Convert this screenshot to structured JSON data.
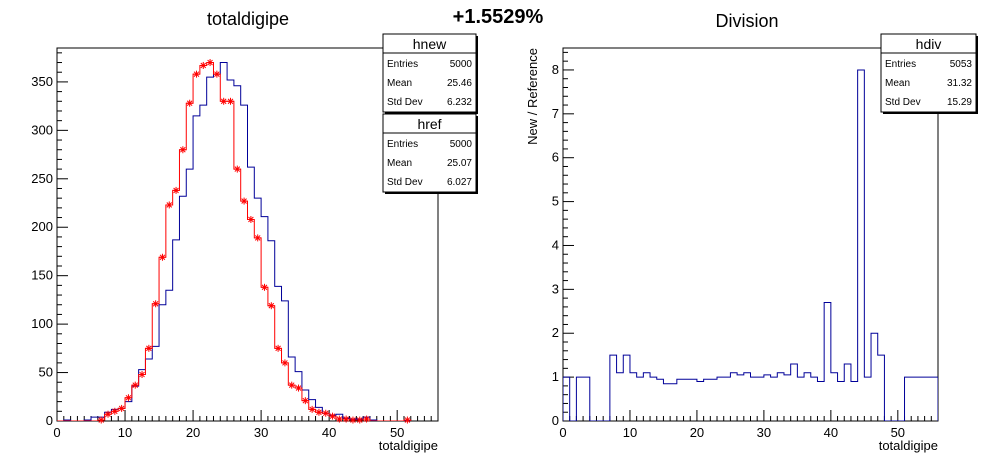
{
  "page": {
    "banner": "+1.5529%"
  },
  "chart_data": [
    {
      "type": "histogram",
      "title": "totaldigipe",
      "xlabel": "totaldigipe",
      "ylabel": "",
      "xlim": [
        0,
        56
      ],
      "ylim": [
        0,
        385
      ],
      "xticks": [
        "0",
        "10",
        "20",
        "30",
        "40",
        "50"
      ],
      "yticks": [
        "0",
        "50",
        "100",
        "150",
        "200",
        "250",
        "300",
        "350"
      ],
      "bin_width": 1,
      "series": [
        {
          "name": "hnew",
          "color": "#000099",
          "style": "step",
          "x": [
            1,
            2,
            3,
            4,
            5,
            6,
            7,
            8,
            9,
            10,
            11,
            12,
            13,
            14,
            15,
            16,
            17,
            18,
            19,
            20,
            21,
            22,
            23,
            24,
            25,
            26,
            27,
            28,
            29,
            30,
            31,
            32,
            33,
            34,
            35,
            36,
            37,
            38,
            39,
            40,
            41,
            42,
            43,
            44,
            45,
            46,
            47,
            48,
            49,
            50,
            51,
            52
          ],
          "values": [
            0,
            1,
            0,
            0,
            1,
            4,
            4,
            9,
            12,
            13,
            20,
            36,
            53,
            64,
            77,
            120,
            135,
            187,
            232,
            260,
            315,
            326,
            355,
            358,
            370,
            352,
            346,
            326,
            262,
            230,
            211,
            186,
            139,
            124,
            66,
            51,
            32,
            22,
            14,
            8,
            6,
            7,
            3,
            2,
            2,
            4,
            1,
            0,
            0,
            0,
            0,
            0
          ]
        },
        {
          "name": "href",
          "color": "#ff0000",
          "style": "step+markers",
          "x": [
            1,
            2,
            3,
            4,
            5,
            6,
            7,
            8,
            9,
            10,
            11,
            12,
            13,
            14,
            15,
            16,
            17,
            18,
            19,
            20,
            21,
            22,
            23,
            24,
            25,
            26,
            27,
            28,
            29,
            30,
            31,
            32,
            33,
            34,
            35,
            36,
            37,
            38,
            39,
            40,
            41,
            42,
            43,
            44,
            45,
            46,
            47,
            48,
            49,
            50,
            51,
            52
          ],
          "values": [
            0,
            0,
            0,
            0,
            0,
            0,
            1,
            7,
            10,
            13,
            24,
            37,
            48,
            75,
            121,
            169,
            223,
            238,
            280,
            328,
            358,
            367,
            370,
            358,
            330,
            330,
            260,
            227,
            208,
            189,
            138,
            119,
            75,
            60,
            37,
            34,
            21,
            12,
            9,
            8,
            5,
            2,
            2,
            1,
            1,
            2,
            0,
            0,
            0,
            0,
            0,
            1
          ]
        }
      ],
      "stats": [
        {
          "name": "hnew",
          "entries": "5000",
          "mean": "25.46",
          "std_dev": "6.232"
        },
        {
          "name": "href",
          "entries": "5000",
          "mean": "25.07",
          "std_dev": "6.027"
        }
      ],
      "stat_labels": {
        "entries": "Entries",
        "mean": "Mean",
        "std_dev": "Std Dev"
      }
    },
    {
      "type": "histogram",
      "title": "Division",
      "xlabel": "totaldigipe",
      "ylabel": "New / Reference",
      "xlim": [
        0,
        56
      ],
      "ylim": [
        0,
        8.5
      ],
      "xticks": [
        "0",
        "10",
        "20",
        "30",
        "40",
        "50"
      ],
      "yticks": [
        "0",
        "1",
        "2",
        "3",
        "4",
        "5",
        "6",
        "7",
        "8"
      ],
      "bin_width": 1,
      "series": [
        {
          "name": "hdiv",
          "color": "#000099",
          "style": "step",
          "x": [
            1,
            2,
            3,
            4,
            5,
            6,
            7,
            8,
            9,
            10,
            11,
            12,
            13,
            14,
            15,
            16,
            17,
            18,
            19,
            20,
            21,
            22,
            23,
            24,
            25,
            26,
            27,
            28,
            29,
            30,
            31,
            32,
            33,
            34,
            35,
            36,
            37,
            38,
            39,
            40,
            41,
            42,
            43,
            44,
            45,
            46,
            47,
            48,
            49,
            50,
            51,
            52,
            53,
            54,
            55,
            56
          ],
          "values": [
            1,
            0,
            1,
            1,
            0,
            0,
            0,
            1.5,
            1.1,
            1.5,
            1.1,
            1.0,
            1.1,
            1.0,
            0.95,
            0.85,
            0.85,
            0.95,
            0.95,
            0.95,
            0.9,
            0.95,
            0.95,
            1.0,
            1.0,
            1.1,
            1.05,
            1.1,
            1.0,
            1.0,
            1.05,
            1.0,
            1.1,
            1.05,
            1.3,
            1.0,
            1.1,
            1.0,
            0.9,
            2.7,
            1.1,
            0.9,
            1.3,
            0.9,
            8.0,
            1.0,
            2.0,
            1.5,
            0,
            0,
            0,
            1,
            1,
            1,
            1,
            1
          ]
        }
      ],
      "stats": [
        {
          "name": "hdiv",
          "entries": "5053",
          "mean": "31.32",
          "std_dev": "15.29"
        }
      ],
      "stat_labels": {
        "entries": "Entries",
        "mean": "Mean",
        "std_dev": "Std Dev"
      }
    }
  ]
}
